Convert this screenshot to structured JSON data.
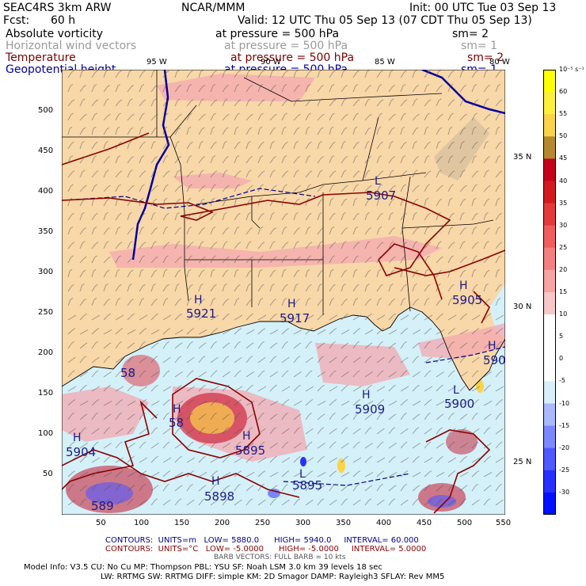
{
  "header": {
    "model": "SEAC4RS  3km ARW",
    "fcst_label": "Fcst:",
    "fcst_value": "60 h",
    "org": "NCAR/MMM",
    "init": "Init: 00 UTC Tue 03 Sep 13",
    "valid": "Valid: 12 UTC Thu 05 Sep 13 (07 CDT Thu 05 Sep 13)"
  },
  "fields": [
    {
      "name": "Absolute vorticity",
      "level": "at pressure =  500 hPa",
      "sm": "sm= 2",
      "color": "#000000"
    },
    {
      "name": "Horizontal wind vectors",
      "level": "at pressure =  500 hPa",
      "sm": "sm= 1",
      "color": "#9a9a9a"
    },
    {
      "name": "Temperature",
      "level": "at pressure =  500 hPa",
      "sm": "sm= 2",
      "color": "#7a0000"
    },
    {
      "name": "Geopotential height",
      "level": "at pressure =  500 hPa",
      "sm": "sm= 1",
      "color": "#0000a0"
    }
  ],
  "longitude_labels": [
    "95 W",
    "90 W",
    "85 W",
    "80 W"
  ],
  "latitude_labels": [
    "35 N",
    "30 N",
    "25 N"
  ],
  "y_ticks": [
    "500",
    "450",
    "400",
    "350",
    "300",
    "250",
    "200",
    "150",
    "100",
    "50"
  ],
  "x_ticks": [
    "50",
    "100",
    "150",
    "200",
    "250",
    "300",
    "350",
    "400",
    "450",
    "500",
    "550"
  ],
  "height_labels": [
    {
      "tag": "L",
      "value": "5907"
    },
    {
      "tag": "H",
      "value": "5921"
    },
    {
      "tag": "H",
      "value": "5917"
    },
    {
      "tag": "H",
      "value": "5905"
    },
    {
      "tag": "H",
      "value": "5909"
    },
    {
      "tag": "L",
      "value": "5900"
    },
    {
      "tag": "H",
      "value": "5895"
    },
    {
      "tag": "H",
      "value": "5904"
    },
    {
      "tag": "H",
      "value": "5898"
    },
    {
      "tag": "L",
      "value": "5895"
    },
    {
      "tag": "H",
      "value": "590"
    },
    {
      "tag": "",
      "value": "58"
    },
    {
      "tag": "",
      "value": "58"
    },
    {
      "tag": "",
      "value": "589"
    },
    {
      "tag": "H",
      "value": ""
    }
  ],
  "colorbar": {
    "units": "10⁻⁵ s⁻¹",
    "levels": [
      "60",
      "55",
      "50",
      "45",
      "40",
      "35",
      "30",
      "25",
      "20",
      "15",
      "10",
      "5",
      "0",
      "-5",
      "-10",
      "-15",
      "-20",
      "-25",
      "-30"
    ],
    "colors": [
      "#ffff00",
      "#ffef3a",
      "#fbd24a",
      "#b58a2f",
      "#c4001a",
      "#d2191f",
      "#e23a3a",
      "#ee5e5e",
      "#f28080",
      "#f6a4a4",
      "#f8c8c8",
      "#ffffff",
      "#ffffff",
      "#ffffff",
      "#d8eef8",
      "#a9b8ff",
      "#7b88ff",
      "#5058ff",
      "#2830ff",
      "#0010ff"
    ]
  },
  "footer": {
    "contours_height": {
      "label": "CONTOURS:",
      "units": "UNITS=m",
      "low": "LOW=   5880.0",
      "high": "HIGH=   5940.0",
      "interval": "INTERVAL=   60.000",
      "color": "#00008b"
    },
    "contours_temp": {
      "label": "CONTOURS:",
      "units": "UNITS=°C",
      "low": "LOW=  -5.0000",
      "high": "HIGH=  -5.0000",
      "interval": "INTERVAL=    5.0000",
      "color": "#8b0000"
    },
    "barbs": "BARB VECTORS:  FULL BARB = 10 kts",
    "model_info_1": "Model Info: V3.5     CU: No Cu     MP: Thompson     PBL: YSU       SF: Noah LSM     3.0 km   39 levels   18 sec",
    "model_info_2": "LW: RRTMG   SW: RRTMG   DIFF: simple KM: 2D Smagor DAMP: Rayleigh3  SFLAY: Rev MM5"
  },
  "colors": {
    "land": "#f8d7a8",
    "sea": "#d4f0f8",
    "vorticity_pink": "#f4a8b0",
    "height_contour": "#00008b",
    "temp_contour": "#8b0000",
    "river": "#0000a0"
  }
}
